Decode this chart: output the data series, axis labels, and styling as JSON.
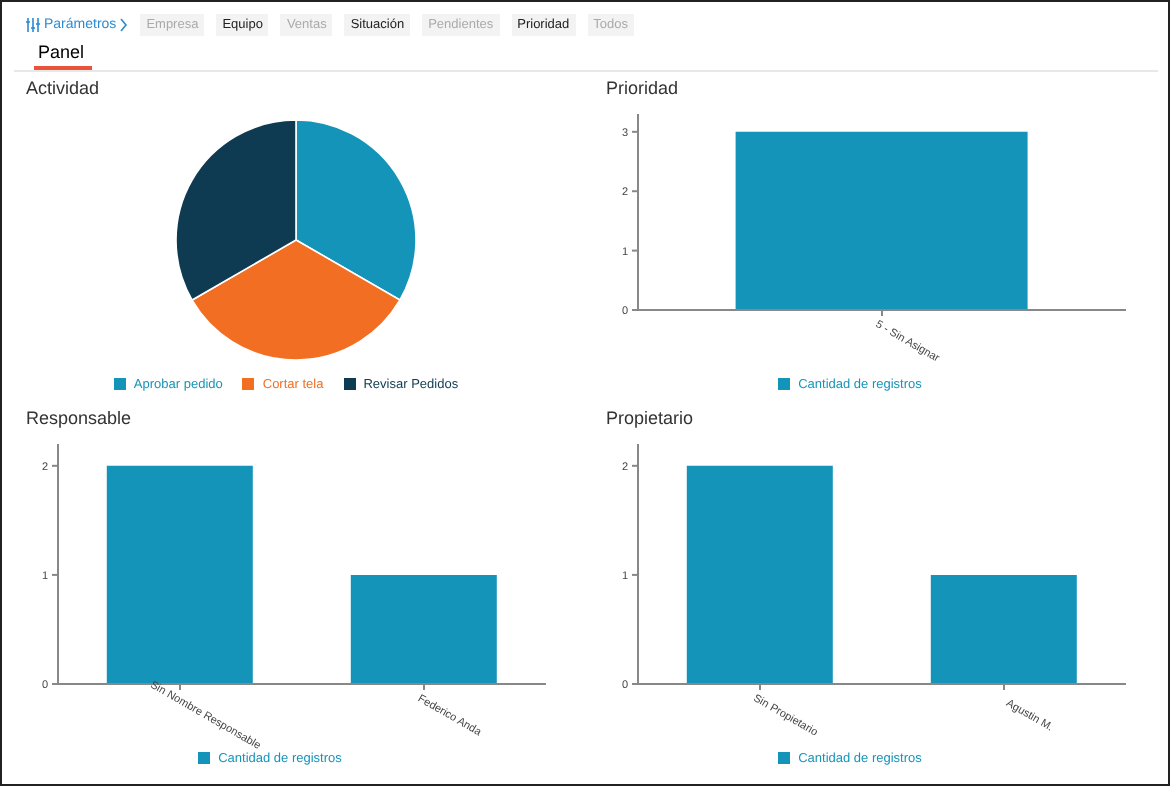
{
  "chart_data": [
    {
      "type": "other",
      "title": "Panel",
      "annotations": [
        "Parámetros",
        "Empresa",
        "Equipo",
        "Ventas",
        "Situación",
        "Pendientes",
        "Prioridad",
        "Todos"
      ]
    },
    {
      "type": "pie",
      "title": "Actividad",
      "categories": [
        "Aprobar pedido",
        "Cortar tela",
        "Revisar Pedidos"
      ],
      "values": [
        33.33,
        33.33,
        33.34
      ],
      "colors": [
        "#1594b9",
        "#f26e22",
        "#0e3b52"
      ],
      "legend": "bottom"
    },
    {
      "type": "bar",
      "title": "Prioridad",
      "categories": [
        "5 - Sin Asignar"
      ],
      "series": [
        {
          "name": "Cantidad de registros",
          "color": "#1594b9",
          "values": [
            3
          ]
        }
      ],
      "ylim": [
        0,
        3.3
      ],
      "yticks": [
        0,
        1,
        2,
        3
      ],
      "legend": "bottom"
    },
    {
      "type": "bar",
      "title": "Responsable",
      "categories": [
        "Sin Nombre Responsable",
        "Federico Anda"
      ],
      "series": [
        {
          "name": "Cantidad de registros",
          "color": "#1594b9",
          "values": [
            2,
            1
          ]
        }
      ],
      "ylim": [
        0,
        2.2
      ],
      "yticks": [
        0,
        1,
        2
      ],
      "legend": "bottom"
    },
    {
      "type": "bar",
      "title": "Propietario",
      "categories": [
        "Sin Propietario",
        "Agustin M."
      ],
      "series": [
        {
          "name": "Cantidad de registros",
          "color": "#1594b9",
          "values": [
            2,
            1
          ]
        }
      ],
      "ylim": [
        0,
        2.2
      ],
      "yticks": [
        0,
        1,
        2
      ],
      "legend": "bottom"
    }
  ]
}
